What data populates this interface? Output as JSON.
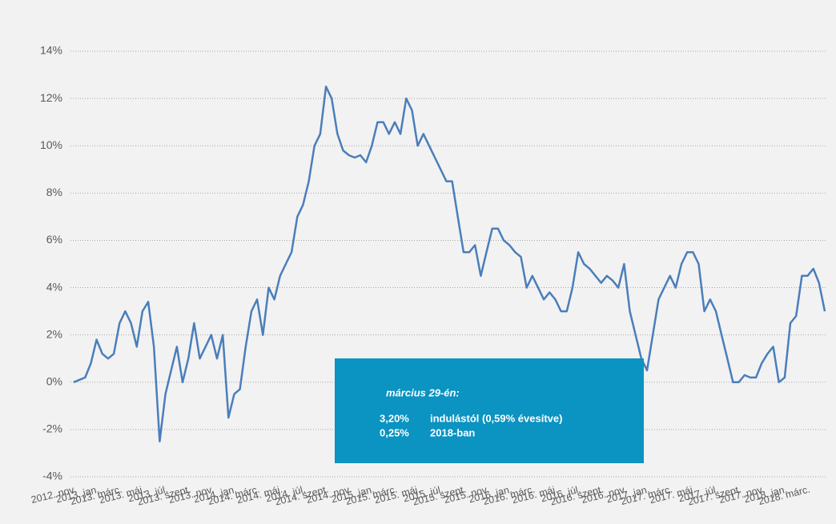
{
  "chart_data": {
    "type": "line",
    "categories": [
      "2012. nov.",
      null,
      null,
      null,
      "2013. jan.",
      null,
      null,
      null,
      "2013. márc.",
      null,
      null,
      null,
      "2013. máj.",
      null,
      null,
      null,
      "2013. júl.",
      null,
      null,
      null,
      "2013. szept.",
      null,
      null,
      null,
      "2013. nov.",
      null,
      null,
      null,
      "2014. jan.",
      null,
      null,
      null,
      "2014. márc.",
      null,
      null,
      null,
      "2014. máj.",
      null,
      null,
      null,
      "2014. júl.",
      null,
      null,
      null,
      "2014. szept.",
      null,
      null,
      null,
      "2014. nov.",
      null,
      null,
      null,
      "2015. jan.",
      null,
      null,
      null,
      "2015. márc.",
      null,
      null,
      null,
      "2015. máj.",
      null,
      null,
      null,
      "2015. júl.",
      null,
      null,
      null,
      "2015. szept.",
      null,
      null,
      null,
      "2015. nov.",
      null,
      null,
      null,
      "2016. jan.",
      null,
      null,
      null,
      "2016. márc.",
      null,
      null,
      null,
      "2016. máj.",
      null,
      null,
      null,
      "2016. júl.",
      null,
      null,
      null,
      "2016. szept.",
      null,
      null,
      null,
      "2016. nov.",
      null,
      null,
      null,
      "2017. jan.",
      null,
      null,
      null,
      "2017. márc.",
      null,
      null,
      null,
      "2017. máj.",
      null,
      null,
      null,
      "2017. júl.",
      null,
      null,
      null,
      "2017. szept.",
      null,
      null,
      null,
      "2017. nov.",
      null,
      null,
      null,
      "2018. jan.",
      null,
      null,
      null,
      "2018. márc.",
      null,
      null,
      null
    ],
    "series": [
      {
        "color": "#4a7ebb",
        "values": [
          0,
          0.1,
          0.2,
          0.8,
          1.8,
          1.2,
          1.0,
          1.2,
          2.5,
          3.0,
          2.5,
          1.5,
          3.0,
          3.4,
          1.5,
          -2.5,
          -0.5,
          0.5,
          1.5,
          0,
          1.0,
          2.5,
          1.0,
          1.5,
          2.0,
          1.0,
          2.0,
          -1.5,
          -0.5,
          -0.3,
          1.5,
          3.0,
          3.5,
          2.0,
          4.0,
          3.5,
          4.5,
          5.0,
          5.5,
          7.0,
          7.5,
          8.5,
          10.0,
          10.5,
          12.5,
          12.0,
          10.5,
          9.8,
          9.6,
          9.5,
          9.6,
          9.3,
          10.0,
          11.0,
          11.0,
          10.5,
          11.0,
          10.5,
          12.0,
          11.5,
          10.0,
          10.5,
          10.0,
          9.5,
          9.0,
          8.5,
          8.5,
          7.0,
          5.5,
          5.5,
          5.8,
          4.5,
          5.5,
          6.5,
          6.5,
          6.0,
          5.8,
          5.5,
          5.3,
          4.0,
          4.5,
          4.0,
          3.5,
          3.8,
          3.5,
          3.0,
          3.0,
          4.0,
          5.5,
          5.0,
          4.8,
          4.5,
          4.2,
          4.5,
          4.3,
          4.0,
          5.0,
          3.0,
          2.0,
          1.0,
          0.5,
          2.0,
          3.5,
          4.0,
          4.5,
          4.0,
          5.0,
          5.5,
          5.5,
          5.0,
          3.0,
          3.5,
          3.0,
          2.0,
          1.0,
          0,
          0,
          0.3,
          0.2,
          0.2,
          0.8,
          1.2,
          1.5,
          0,
          0.2,
          2.5,
          2.8,
          4.5,
          4.5,
          4.8,
          4.2,
          3.0
        ]
      }
    ],
    "ylim": [
      -4,
      14
    ],
    "yticks": [
      {
        "value": -4,
        "label": "-4%"
      },
      {
        "value": -2,
        "label": "-2%"
      },
      {
        "value": 0,
        "label": "0%"
      },
      {
        "value": 2,
        "label": "2%"
      },
      {
        "value": 4,
        "label": "4%"
      },
      {
        "value": 6,
        "label": "6%"
      },
      {
        "value": 8,
        "label": "8%"
      },
      {
        "value": 10,
        "label": "10%"
      },
      {
        "value": 12,
        "label": "12%"
      },
      {
        "value": 14,
        "label": "14%"
      }
    ],
    "grid": true,
    "annotation": {
      "heading": "március 29-én:",
      "lines": [
        [
          "3,20%",
          "indulástól (0,59% évesítve)"
        ],
        [
          "0,25%",
          "2018-ban"
        ]
      ],
      "color": "#0b93c1"
    }
  }
}
